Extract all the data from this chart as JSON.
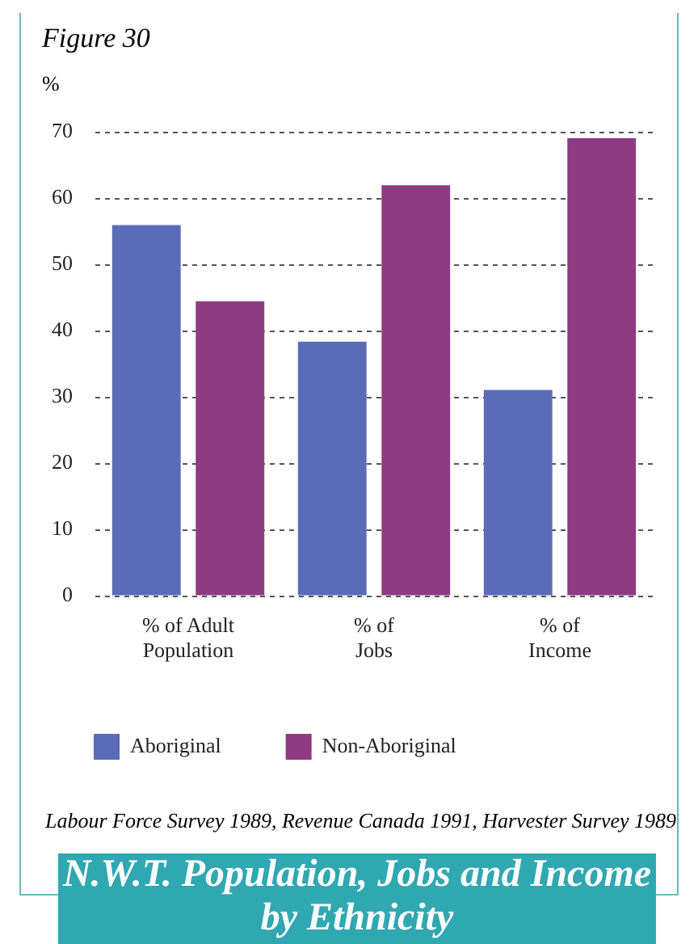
{
  "chart_data": {
    "type": "bar",
    "subtitle": "Figure 30",
    "title": "N.W.T. Population, Jobs and Income by Ethnicity",
    "ylabel": "%",
    "categories": [
      "% of Adult\nPopulation",
      "% of\nJobs",
      "% of\nIncome"
    ],
    "series": [
      {
        "name": "Aboriginal",
        "color": "#5a6bb8",
        "values": [
          56,
          38.4,
          31.1
        ]
      },
      {
        "name": "Non-Aboriginal",
        "color": "#8e3b82",
        "values": [
          44.5,
          62,
          69.1
        ]
      }
    ],
    "ylim": [
      0,
      70
    ],
    "yticks": [
      0,
      10,
      20,
      30,
      40,
      50,
      60,
      70
    ],
    "grid": "y",
    "legend": "bottom",
    "annotations": [
      "Labour Force Survey 1989, Revenue Canada 1991, Harvester Survey 1989"
    ]
  }
}
